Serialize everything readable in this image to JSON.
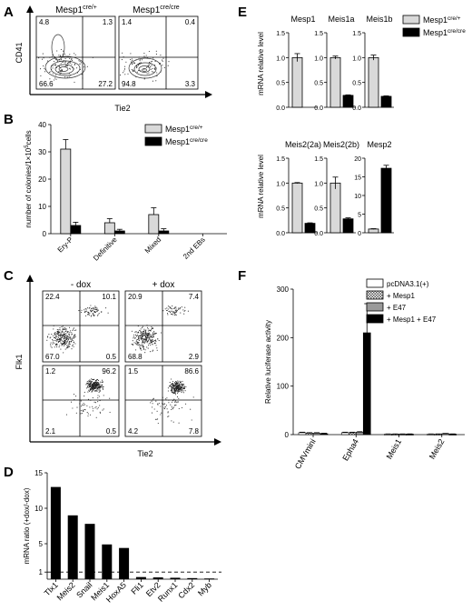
{
  "panels": {
    "A": {
      "letter": "A",
      "ylabel": "CD41",
      "xlabel": "Tie2",
      "plots": [
        {
          "title_base": "Mesp1",
          "title_sup": "cre/+",
          "q": [
            "4.8",
            "1.3",
            "66.6",
            "27.2"
          ]
        },
        {
          "title_base": "Mesp1",
          "title_sup": "cre/cre",
          "q": [
            "1.4",
            "0.4",
            "94.8",
            "3.3"
          ]
        }
      ]
    },
    "B": {
      "letter": "B"
    },
    "C": {
      "letter": "C",
      "ylabel": "Flk1",
      "xlabel": "Tie2",
      "col_titles": [
        "- dox",
        "+ dox"
      ],
      "plots": [
        {
          "q": [
            "22.4",
            "10.1",
            "67.0",
            "0.5"
          ]
        },
        {
          "q": [
            "20.9",
            "7.4",
            "68.8",
            "2.9"
          ]
        },
        {
          "q": [
            "1.2",
            "96.2",
            "2.1",
            "0.5"
          ]
        },
        {
          "q": [
            "1.5",
            "86.6",
            "4.2",
            "7.8"
          ]
        }
      ]
    },
    "D": {
      "letter": "D"
    },
    "E": {
      "letter": "E"
    },
    "F": {
      "letter": "F"
    }
  },
  "chart_data": [
    {
      "panel": "B",
      "type": "bar",
      "ylabel_parts": [
        "number of colonies/1×10",
        "5",
        "cells"
      ],
      "categories": [
        "Ery-P",
        "Definitive",
        "Mixed",
        "2nd EBs"
      ],
      "ylim": [
        0,
        40
      ],
      "yticks": [
        0,
        10,
        20,
        30,
        40
      ],
      "legend": "top-right",
      "series": [
        {
          "name_base": "Mesp1",
          "name_sup": "cre/+",
          "color": "#d9d9d9",
          "values": [
            31,
            4,
            7,
            0
          ],
          "errors": [
            3.5,
            1.5,
            2.5,
            0
          ]
        },
        {
          "name_base": "Mesp1",
          "name_sup": "cre/cre",
          "color": "#000000",
          "values": [
            3,
            1,
            1,
            0
          ],
          "errors": [
            1.2,
            0.6,
            0.8,
            0
          ]
        }
      ]
    },
    {
      "panel": "D",
      "type": "bar",
      "ylabel": "mRNA ratio (+dox/-dox)",
      "categories": [
        "Tlx1",
        "Meis2",
        "Snail",
        "Meis1",
        "HoxA5",
        "Fli1",
        "Etv2",
        "Runx1",
        "Cdx2",
        "Myb"
      ],
      "values": [
        13.0,
        9.0,
        7.8,
        4.9,
        4.4,
        0.3,
        0.25,
        0.2,
        0.15,
        0.1
      ],
      "ylim": [
        0,
        15
      ],
      "yticks": [
        1,
        5,
        10,
        15
      ],
      "reference_line": 1
    },
    {
      "panel": "E",
      "type": "bar",
      "ylabel": "mRNA relative level",
      "legend": "top-right",
      "series_names": [
        {
          "base": "Mesp1",
          "sup": "cre/+",
          "color": "#d9d9d9"
        },
        {
          "base": "Mesp1",
          "sup": "cre/cre",
          "color": "#000000"
        }
      ],
      "subplots": [
        {
          "title": "Mesp1",
          "values": [
            1.0,
            0
          ],
          "errors": [
            0.08,
            0
          ],
          "ylim": [
            0,
            1.5
          ],
          "yticks": [
            0.0,
            0.5,
            1.0,
            1.5
          ]
        },
        {
          "title": "Meis1a",
          "values": [
            1.0,
            0.24
          ],
          "errors": [
            0.03,
            0.01
          ],
          "ylim": [
            0,
            1.5
          ],
          "yticks": [
            0.0,
            0.5,
            1.0,
            1.5
          ]
        },
        {
          "title": "Meis1b",
          "values": [
            1.0,
            0.22
          ],
          "errors": [
            0.05,
            0.01
          ],
          "ylim": [
            0,
            1.5
          ],
          "yticks": [
            0.0,
            0.5,
            1.0,
            1.5
          ]
        },
        {
          "title": "Meis2(2a)",
          "values": [
            1.0,
            0.19
          ],
          "errors": [
            0.01,
            0.01
          ],
          "ylim": [
            0,
            1.5
          ],
          "yticks": [
            0.0,
            0.5,
            1.0,
            1.5
          ]
        },
        {
          "title": "Meis2(2b)",
          "values": [
            1.0,
            0.28
          ],
          "errors": [
            0.12,
            0.02
          ],
          "ylim": [
            0,
            1.5
          ],
          "yticks": [
            0.0,
            0.5,
            1.0,
            1.5
          ]
        },
        {
          "title": "Mesp2",
          "values": [
            1.0,
            17.3
          ],
          "errors": [
            0.1,
            0.8
          ],
          "ylim": [
            0,
            20
          ],
          "yticks": [
            0,
            5,
            10,
            15,
            20
          ]
        }
      ]
    },
    {
      "panel": "F",
      "type": "bar",
      "ylabel": "Relative luciferase activity",
      "categories": [
        "CMVmini",
        "Epha4",
        "Meis1",
        "Meis2"
      ],
      "ylim": [
        0,
        300
      ],
      "yticks": [
        0,
        100,
        200,
        300
      ],
      "legend": "top-right",
      "series": [
        {
          "name": "pcDNA3.1(+)",
          "color": "#ffffff",
          "values": [
            4,
            4,
            1,
            1
          ],
          "errors": [
            1,
            1,
            0.5,
            0.5
          ]
        },
        {
          "name": "+ Mesp1",
          "color": "#8c8c8c",
          "pattern": "checker",
          "values": [
            3,
            4,
            1,
            1
          ],
          "errors": [
            1,
            1,
            0.5,
            0.5
          ]
        },
        {
          "name": "+ E47",
          "color": "#9a9a9a",
          "values": [
            3,
            5,
            1,
            2
          ],
          "errors": [
            1,
            1,
            0.5,
            0.5
          ]
        },
        {
          "name": "+ Mesp1 + E47",
          "color": "#000000",
          "values": [
            2,
            210,
            1,
            1
          ],
          "errors": [
            1,
            60,
            0.5,
            0.5
          ]
        }
      ]
    }
  ]
}
